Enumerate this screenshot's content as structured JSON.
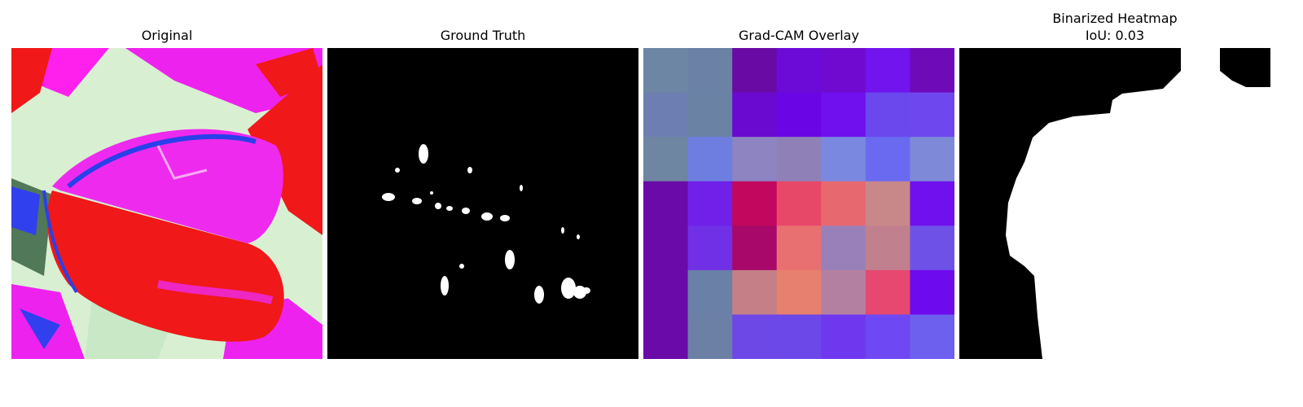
{
  "figure": {
    "panels": [
      {
        "id": "original",
        "title": "Original"
      },
      {
        "id": "ground_truth",
        "title": "Ground Truth"
      },
      {
        "id": "gradcam",
        "title": "Grad-CAM Overlay"
      },
      {
        "id": "binarized",
        "title": "Binarized Heatmap",
        "subtitle": "IoU: 0.03"
      }
    ],
    "gradcam_grid": [
      [
        "#6c86a4",
        "#6b82a6",
        "#6a0aa4",
        "#6c0ad8",
        "#700ad0",
        "#7214ee",
        "#6e0ab8"
      ],
      [
        "#6d7fb2",
        "#6a82a4",
        "#6a0ad0",
        "#6a06e6",
        "#7010ee",
        "#6a48ee",
        "#6e48ee"
      ],
      [
        "#6e86a2",
        "#6e7ee0",
        "#8e84c2",
        "#9080b8",
        "#7a88e0",
        "#6a6af0",
        "#7e8ad8"
      ],
      [
        "#6a0aa8",
        "#7020e8",
        "#c2085e",
        "#e84868",
        "#e86870",
        "#c8888a",
        "#7010ee"
      ],
      [
        "#6a0aa8",
        "#7030e6",
        "#a8086a",
        "#e87070",
        "#9a80b8",
        "#c0808e",
        "#6e52e8"
      ],
      [
        "#6a0aa8",
        "#6a80a6",
        "#c48086",
        "#e88070",
        "#b480a2",
        "#e64870",
        "#6e0aee"
      ],
      [
        "#6a0aa8",
        "#6c80a6",
        "#6e48e6",
        "#6c48e8",
        "#7038ee",
        "#6e48f2",
        "#6e60ee"
      ]
    ]
  }
}
